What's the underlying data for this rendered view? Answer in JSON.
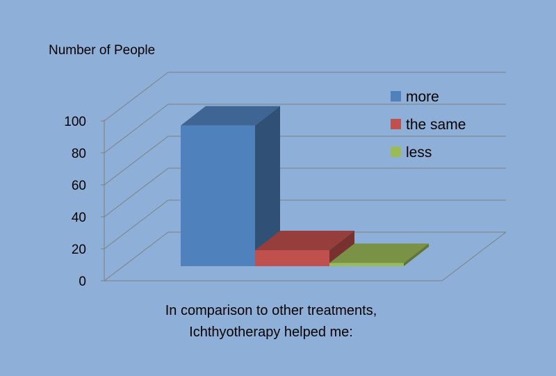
{
  "chart_data": {
    "type": "bar",
    "style": "3d-column",
    "ylabel": "Number of People",
    "xlabel_lines": [
      "In comparison to other treatments,",
      "Ichthyotherapy helped me:"
    ],
    "categories": [
      "more",
      "the same",
      "less"
    ],
    "values": [
      88,
      10,
      2
    ],
    "colors": [
      "#4F81BD",
      "#C0504D",
      "#9BBB59"
    ],
    "ylim": [
      0,
      100
    ],
    "yticks": [
      "0",
      "20",
      "40",
      "60",
      "80",
      "100"
    ],
    "legend": {
      "position": "top-right",
      "entries": [
        "more",
        "the same",
        "less"
      ]
    },
    "grid": true
  }
}
